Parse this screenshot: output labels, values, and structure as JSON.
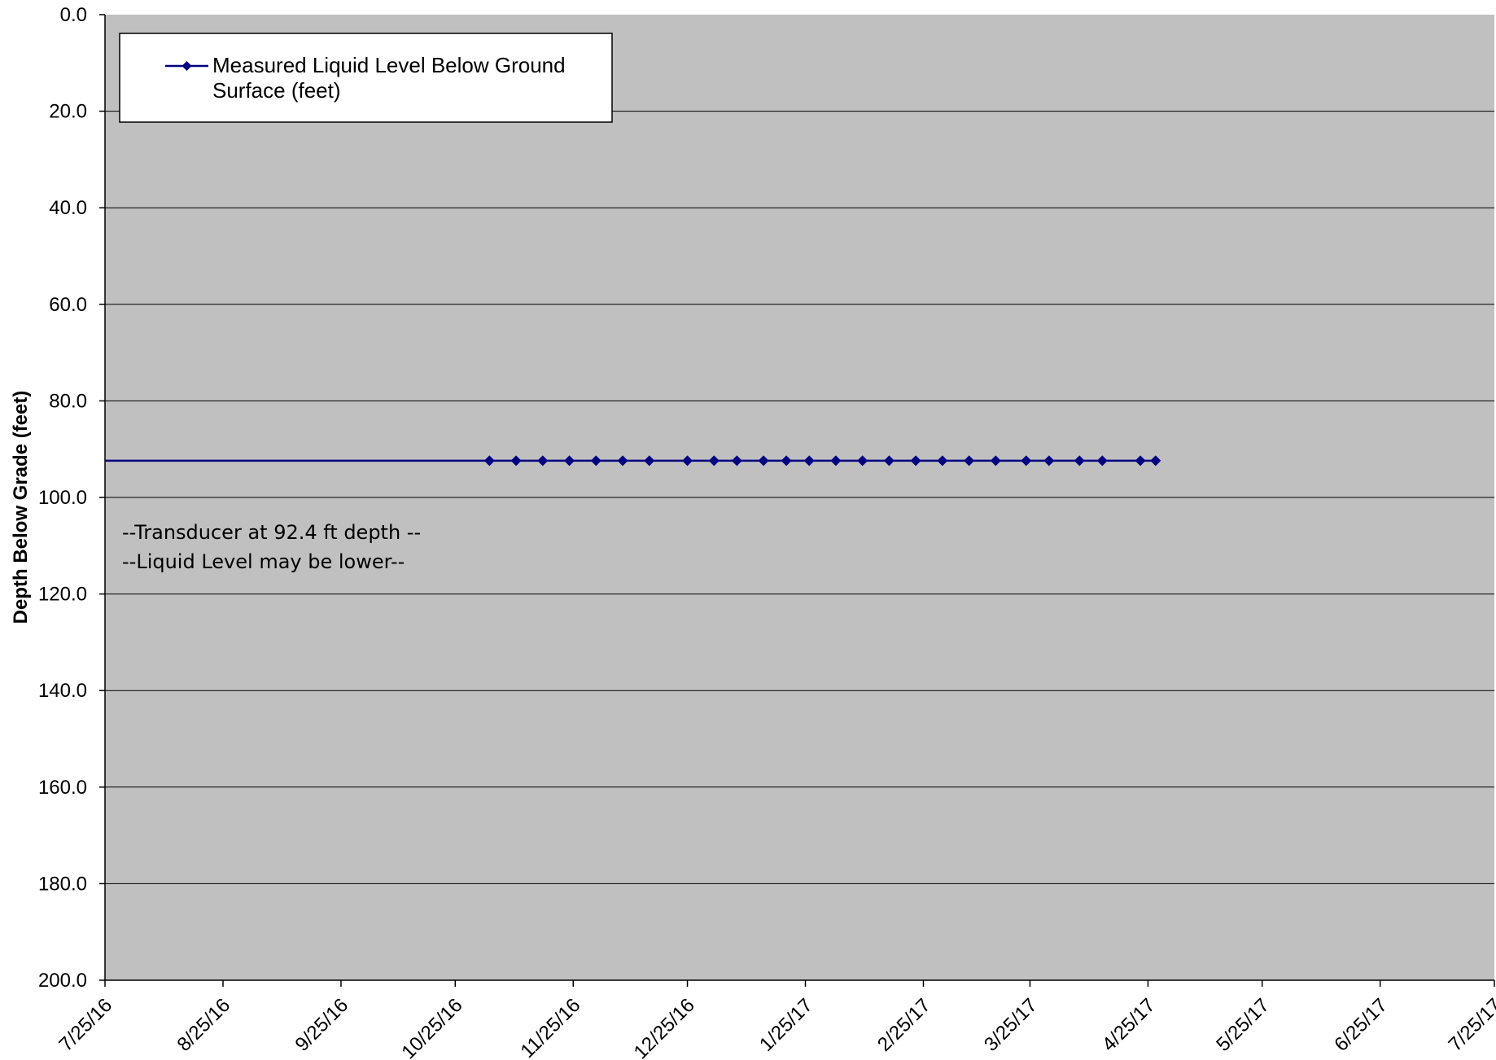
{
  "chart_data": {
    "type": "line",
    "ylabel": "Depth Below Grade (feet)",
    "xlabel": "",
    "title": "",
    "ylim": [
      0,
      200
    ],
    "y_reversed": true,
    "y_ticks": [
      "0.0",
      "20.0",
      "40.0",
      "60.0",
      "80.0",
      "100.0",
      "120.0",
      "140.0",
      "160.0",
      "180.0",
      "200.0"
    ],
    "x_ticks": [
      "7/25/16",
      "8/25/16",
      "9/25/16",
      "10/25/16",
      "11/25/16",
      "12/25/16",
      "1/25/17",
      "2/25/17",
      "3/25/17",
      "4/25/17",
      "5/25/17",
      "6/25/17",
      "7/25/17"
    ],
    "xlim": [
      "2016-07-25",
      "2017-07-25"
    ],
    "grid": "horizontal",
    "legend_position": "top-left",
    "colors": {
      "plot_bg": "#c0c0c0",
      "series": "#000080",
      "grid": "#000000"
    },
    "reference_line": {
      "y": 92.4
    },
    "series": [
      {
        "name": "Measured Liquid Level Below Ground Surface (feet)",
        "marker": "diamond",
        "x": [
          "2016-11-03",
          "2016-11-10",
          "2016-11-17",
          "2016-11-24",
          "2016-12-01",
          "2016-12-08",
          "2016-12-15",
          "2016-12-25",
          "2017-01-01",
          "2017-01-07",
          "2017-01-14",
          "2017-01-20",
          "2017-01-26",
          "2017-02-02",
          "2017-02-09",
          "2017-02-16",
          "2017-02-23",
          "2017-03-02",
          "2017-03-09",
          "2017-03-16",
          "2017-03-24",
          "2017-03-30",
          "2017-04-07",
          "2017-04-13",
          "2017-04-23",
          "2017-04-27"
        ],
        "y": [
          92.4,
          92.4,
          92.4,
          92.4,
          92.4,
          92.4,
          92.4,
          92.4,
          92.4,
          92.4,
          92.4,
          92.4,
          92.4,
          92.4,
          92.4,
          92.4,
          92.4,
          92.4,
          92.4,
          92.4,
          92.4,
          92.4,
          92.4,
          92.4,
          92.4,
          92.4
        ]
      }
    ],
    "legend_lines": [
      "Measured Liquid Level Below Ground",
      "Surface (feet)"
    ],
    "annotations": [
      "--Transducer at 92.4 ft depth --",
      "--Liquid Level may be lower--"
    ]
  }
}
